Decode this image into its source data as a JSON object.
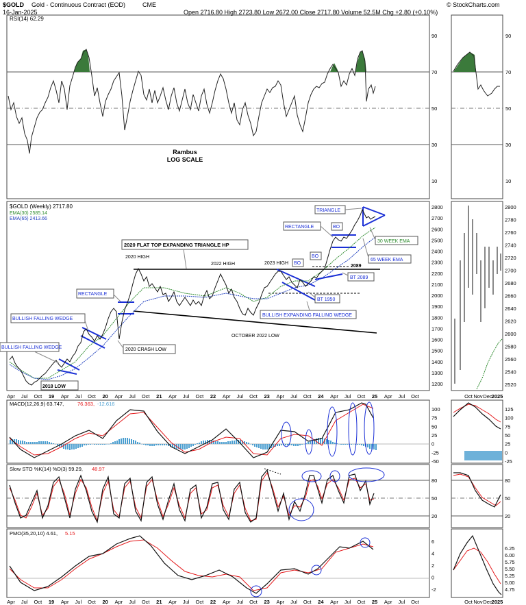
{
  "header": {
    "symbol": "$GOLD",
    "name": "Gold - Continuous Contract (EOD)",
    "exchange": "CME",
    "date": "16-Jan-2025",
    "ohlcv": "Open 2716.80   High 2723.80   Low 2672.00   Close 2717.80   Volume 52.5M   Chg +2.80 (+0.10%)",
    "watermark": "© StockCharts.com"
  },
  "rsi": {
    "label": "RSI(14) 62.29",
    "ticks": [
      "90",
      "70",
      "50",
      "30",
      "10"
    ],
    "note1": "Rambus",
    "note2": "LOG SCALE"
  },
  "price": {
    "legend_title": "$GOLD (Weekly) 2717.80",
    "legend_ema30": "EMA(30) 2585.14",
    "legend_ema65": "EMA(65) 2413.66",
    "ticks_main": [
      "2800",
      "2700",
      "2600",
      "2500",
      "2400",
      "2300",
      "2200",
      "2100",
      "2000",
      "1900",
      "1800",
      "1700",
      "1600",
      "1500",
      "1400",
      "1300",
      "1200"
    ],
    "ticks_zoom": [
      "2800",
      "2780",
      "2760",
      "2740",
      "2720",
      "2700",
      "2680",
      "2660",
      "2640",
      "2620",
      "2600",
      "2580",
      "2560",
      "2540",
      "2520"
    ],
    "annotations": {
      "bfw1": "BULLISH FALLING WEDGE",
      "low2018": "2018 LOW",
      "bfw2": "BULLISH FALLING WEDGE",
      "rect1": "RECTANGLE",
      "crash": "2020 CRASH LOW",
      "hp": "2020 FLAT TOP EXPANDING TRIANGLE HP",
      "high2020": "2020 HIGH",
      "high2022": "2022 HIGH",
      "high2023": "2023 HIGH",
      "bo1": "BO",
      "bo2": "BO",
      "bo3": "BO",
      "rect2": "RECTANGLE",
      "triangle": "TRIANGLE",
      "ema30": "30 WEEK EMA",
      "ema65": "65 WEEK EMA",
      "v2089": "2089",
      "bt2089": "BT 2089",
      "bt1950": "BT 1950",
      "befw": "BULLISH EXPANDING FALLING WEDGE",
      "oct2022": "OCTOBER 2022 LOW"
    }
  },
  "time_axis": {
    "main": [
      "Apr",
      "Jul",
      "Oct",
      "19",
      "Apr",
      "Jul",
      "Oct",
      "20",
      "Apr",
      "Jul",
      "Oct",
      "21",
      "Apr",
      "Jul",
      "Oct",
      "22",
      "Apr",
      "Jul",
      "Oct",
      "23",
      "Apr",
      "Jul",
      "Oct",
      "24",
      "Apr",
      "Jul",
      "Oct",
      "25",
      "Apr",
      "Jul",
      "Oct"
    ],
    "zoom": [
      "Oct",
      "Nov",
      "Dec",
      "2025"
    ]
  },
  "macd": {
    "label_main": "MACD(12,26,9) 63.747,",
    "label_signal": "76.363,",
    "label_hist": "-12.616",
    "ticks_main": [
      "100",
      "75",
      "50",
      "25",
      "0",
      "-25",
      "-50"
    ],
    "ticks_zoom": [
      "125",
      "100",
      "75",
      "50",
      "25",
      "0",
      "-25"
    ]
  },
  "sto": {
    "label_main": "Slow STO %K(14) %D(3) 59.29,",
    "label_signal": "48.97",
    "ticks": [
      "80",
      "50",
      "20"
    ]
  },
  "pmo": {
    "label_main": "PMO(35,20,10) 4.61,",
    "label_signal": "5.15",
    "ticks_main": [
      "6",
      "4",
      "2",
      "0",
      "-2"
    ],
    "ticks_zoom": [
      "6.25",
      "6.00",
      "5.75",
      "5.50",
      "5.25",
      "5.00",
      "4.75"
    ]
  },
  "colors": {
    "price": "#111111",
    "signal": "#e41a1c",
    "ema30": "#2e8b2e",
    "ema65": "#1f3fbf",
    "annotation": "#1a2fd6",
    "rsi_fill": "#3b7a3b",
    "hist": "#4a9ed0"
  },
  "chart_data": [
    {
      "type": "line",
      "title": "RSI(14) 62.29",
      "ylim": [
        0,
        100
      ],
      "x": [
        "Apr",
        "Jul",
        "Oct",
        "19",
        "Apr",
        "Jul",
        "Oct",
        "20",
        "Apr",
        "Jul",
        "Oct",
        "21",
        "Apr",
        "Jul",
        "Oct",
        "22",
        "Apr",
        "Jul",
        "Oct",
        "23",
        "Apr",
        "Jul",
        "Oct",
        "24",
        "Apr",
        "Jul",
        "Oct",
        "25"
      ],
      "series": [
        {
          "values": [
            52,
            40,
            30,
            62,
            55,
            75,
            60,
            72,
            55,
            80,
            52,
            48,
            50,
            55,
            48,
            62,
            58,
            38,
            35,
            60,
            65,
            50,
            55,
            52,
            72,
            65,
            70,
            62
          ]
        }
      ]
    },
    {
      "type": "line",
      "title": "$GOLD (Weekly) 2717.80",
      "ylim": [
        1150,
        2820
      ],
      "x": [
        "Apr",
        "Jul",
        "Oct",
        "19",
        "Apr",
        "Jul",
        "Oct",
        "20",
        "Apr",
        "Jul",
        "Oct",
        "21",
        "Apr",
        "Jul",
        "Oct",
        "22",
        "Apr",
        "Jul",
        "Oct",
        "23",
        "Apr",
        "Jul",
        "Oct",
        "24",
        "Apr",
        "Jul",
        "Oct",
        "25"
      ],
      "series": [
        {
          "name": "$GOLD",
          "values": [
            1340,
            1300,
            1210,
            1290,
            1300,
            1380,
            1500,
            1530,
            1620,
            1780,
            1900,
            1870,
            1740,
            1800,
            1790,
            1800,
            1920,
            1740,
            1650,
            1880,
            1990,
            1960,
            1840,
            2050,
            2240,
            2360,
            2550,
            2717
          ]
        },
        {
          "name": "EMA(30)",
          "values": [
            1320,
            1300,
            1260,
            1260,
            1280,
            1320,
            1400,
            1460,
            1520,
            1640,
            1780,
            1830,
            1790,
            1790,
            1790,
            1800,
            1840,
            1800,
            1730,
            1790,
            1880,
            1920,
            1900,
            1960,
            2080,
            2230,
            2400,
            2585
          ]
        },
        {
          "name": "EMA(65)",
          "values": [
            1310,
            1300,
            1280,
            1270,
            1275,
            1300,
            1350,
            1400,
            1460,
            1550,
            1680,
            1760,
            1780,
            1790,
            1790,
            1795,
            1815,
            1810,
            1770,
            1780,
            1830,
            1870,
            1880,
            1920,
            2000,
            2120,
            2270,
            2413
          ]
        }
      ]
    },
    {
      "type": "line",
      "title": "MACD(12,26,9) 63.747, 76.363, -12.616",
      "ylim": [
        -60,
        130
      ],
      "x": [
        "Apr",
        "Jul",
        "Oct",
        "19",
        "Apr",
        "Jul",
        "Oct",
        "20",
        "Apr",
        "Jul",
        "Oct",
        "21",
        "Apr",
        "Jul",
        "Oct",
        "22",
        "Apr",
        "Jul",
        "Oct",
        "23",
        "Apr",
        "Jul",
        "Oct",
        "24",
        "Apr",
        "Jul",
        "Oct",
        "25"
      ],
      "series": [
        {
          "name": "MACD",
          "values": [
            5,
            -15,
            -25,
            5,
            0,
            30,
            45,
            40,
            60,
            90,
            55,
            20,
            -15,
            10,
            5,
            0,
            30,
            -20,
            -40,
            10,
            45,
            20,
            -10,
            40,
            90,
            95,
            120,
            64
          ]
        },
        {
          "name": "Signal",
          "values": [
            8,
            -8,
            -20,
            -5,
            2,
            20,
            40,
            40,
            55,
            80,
            60,
            30,
            -5,
            5,
            5,
            2,
            25,
            -10,
            -35,
            0,
            38,
            25,
            -5,
            30,
            80,
            92,
            110,
            76
          ]
        }
      ]
    },
    {
      "type": "line",
      "title": "Slow STO %K(14) %D(3) 59.29, 48.97",
      "ylim": [
        0,
        100
      ],
      "x": [
        "Apr",
        "Jul",
        "Oct",
        "19",
        "Apr",
        "Jul",
        "Oct",
        "20",
        "Apr",
        "Jul",
        "Oct",
        "21",
        "Apr",
        "Jul",
        "Oct",
        "22",
        "Apr",
        "Jul",
        "Oct",
        "23",
        "Apr",
        "Jul",
        "Oct",
        "24",
        "Apr",
        "Jul",
        "Oct",
        "25"
      ],
      "series": [
        {
          "name": "%K",
          "values": [
            70,
            25,
            20,
            85,
            40,
            85,
            30,
            80,
            30,
            90,
            25,
            20,
            80,
            20,
            85,
            25,
            85,
            20,
            15,
            90,
            85,
            25,
            20,
            90,
            85,
            70,
            85,
            59
          ]
        },
        {
          "name": "%D",
          "values": [
            65,
            30,
            25,
            80,
            45,
            80,
            35,
            75,
            35,
            85,
            30,
            25,
            75,
            25,
            80,
            30,
            80,
            25,
            20,
            85,
            80,
            30,
            25,
            85,
            80,
            72,
            82,
            49
          ]
        }
      ]
    },
    {
      "type": "line",
      "title": "PMO(35,20,10) 4.61, 5.15",
      "ylim": [
        -3,
        7
      ],
      "x": [
        "Apr",
        "Jul",
        "Oct",
        "19",
        "Apr",
        "Jul",
        "Oct",
        "20",
        "Apr",
        "Jul",
        "Oct",
        "21",
        "Apr",
        "Jul",
        "Oct",
        "22",
        "Apr",
        "Jul",
        "Oct",
        "23",
        "Apr",
        "Jul",
        "Oct",
        "24",
        "Apr",
        "Jul",
        "Oct",
        "25"
      ],
      "series": [
        {
          "name": "PMO",
          "values": [
            1,
            -1,
            -2,
            -1.5,
            0,
            2,
            3.5,
            4,
            5,
            6.5,
            5,
            3,
            0,
            -0.5,
            0,
            0.5,
            1,
            -1,
            -2.5,
            0,
            2,
            1.5,
            0.5,
            1.5,
            4,
            5,
            6,
            4.61
          ]
        },
        {
          "name": "Signal",
          "values": [
            1.2,
            -0.5,
            -1.8,
            -1.6,
            -0.5,
            1.2,
            3,
            3.8,
            4.6,
            6,
            5.4,
            3.5,
            1,
            0,
            0,
            0.4,
            0.8,
            -0.4,
            -2,
            -0.8,
            1.5,
            1.6,
            0.8,
            1.2,
            3.4,
            4.6,
            5.6,
            5.15
          ]
        }
      ]
    }
  ]
}
